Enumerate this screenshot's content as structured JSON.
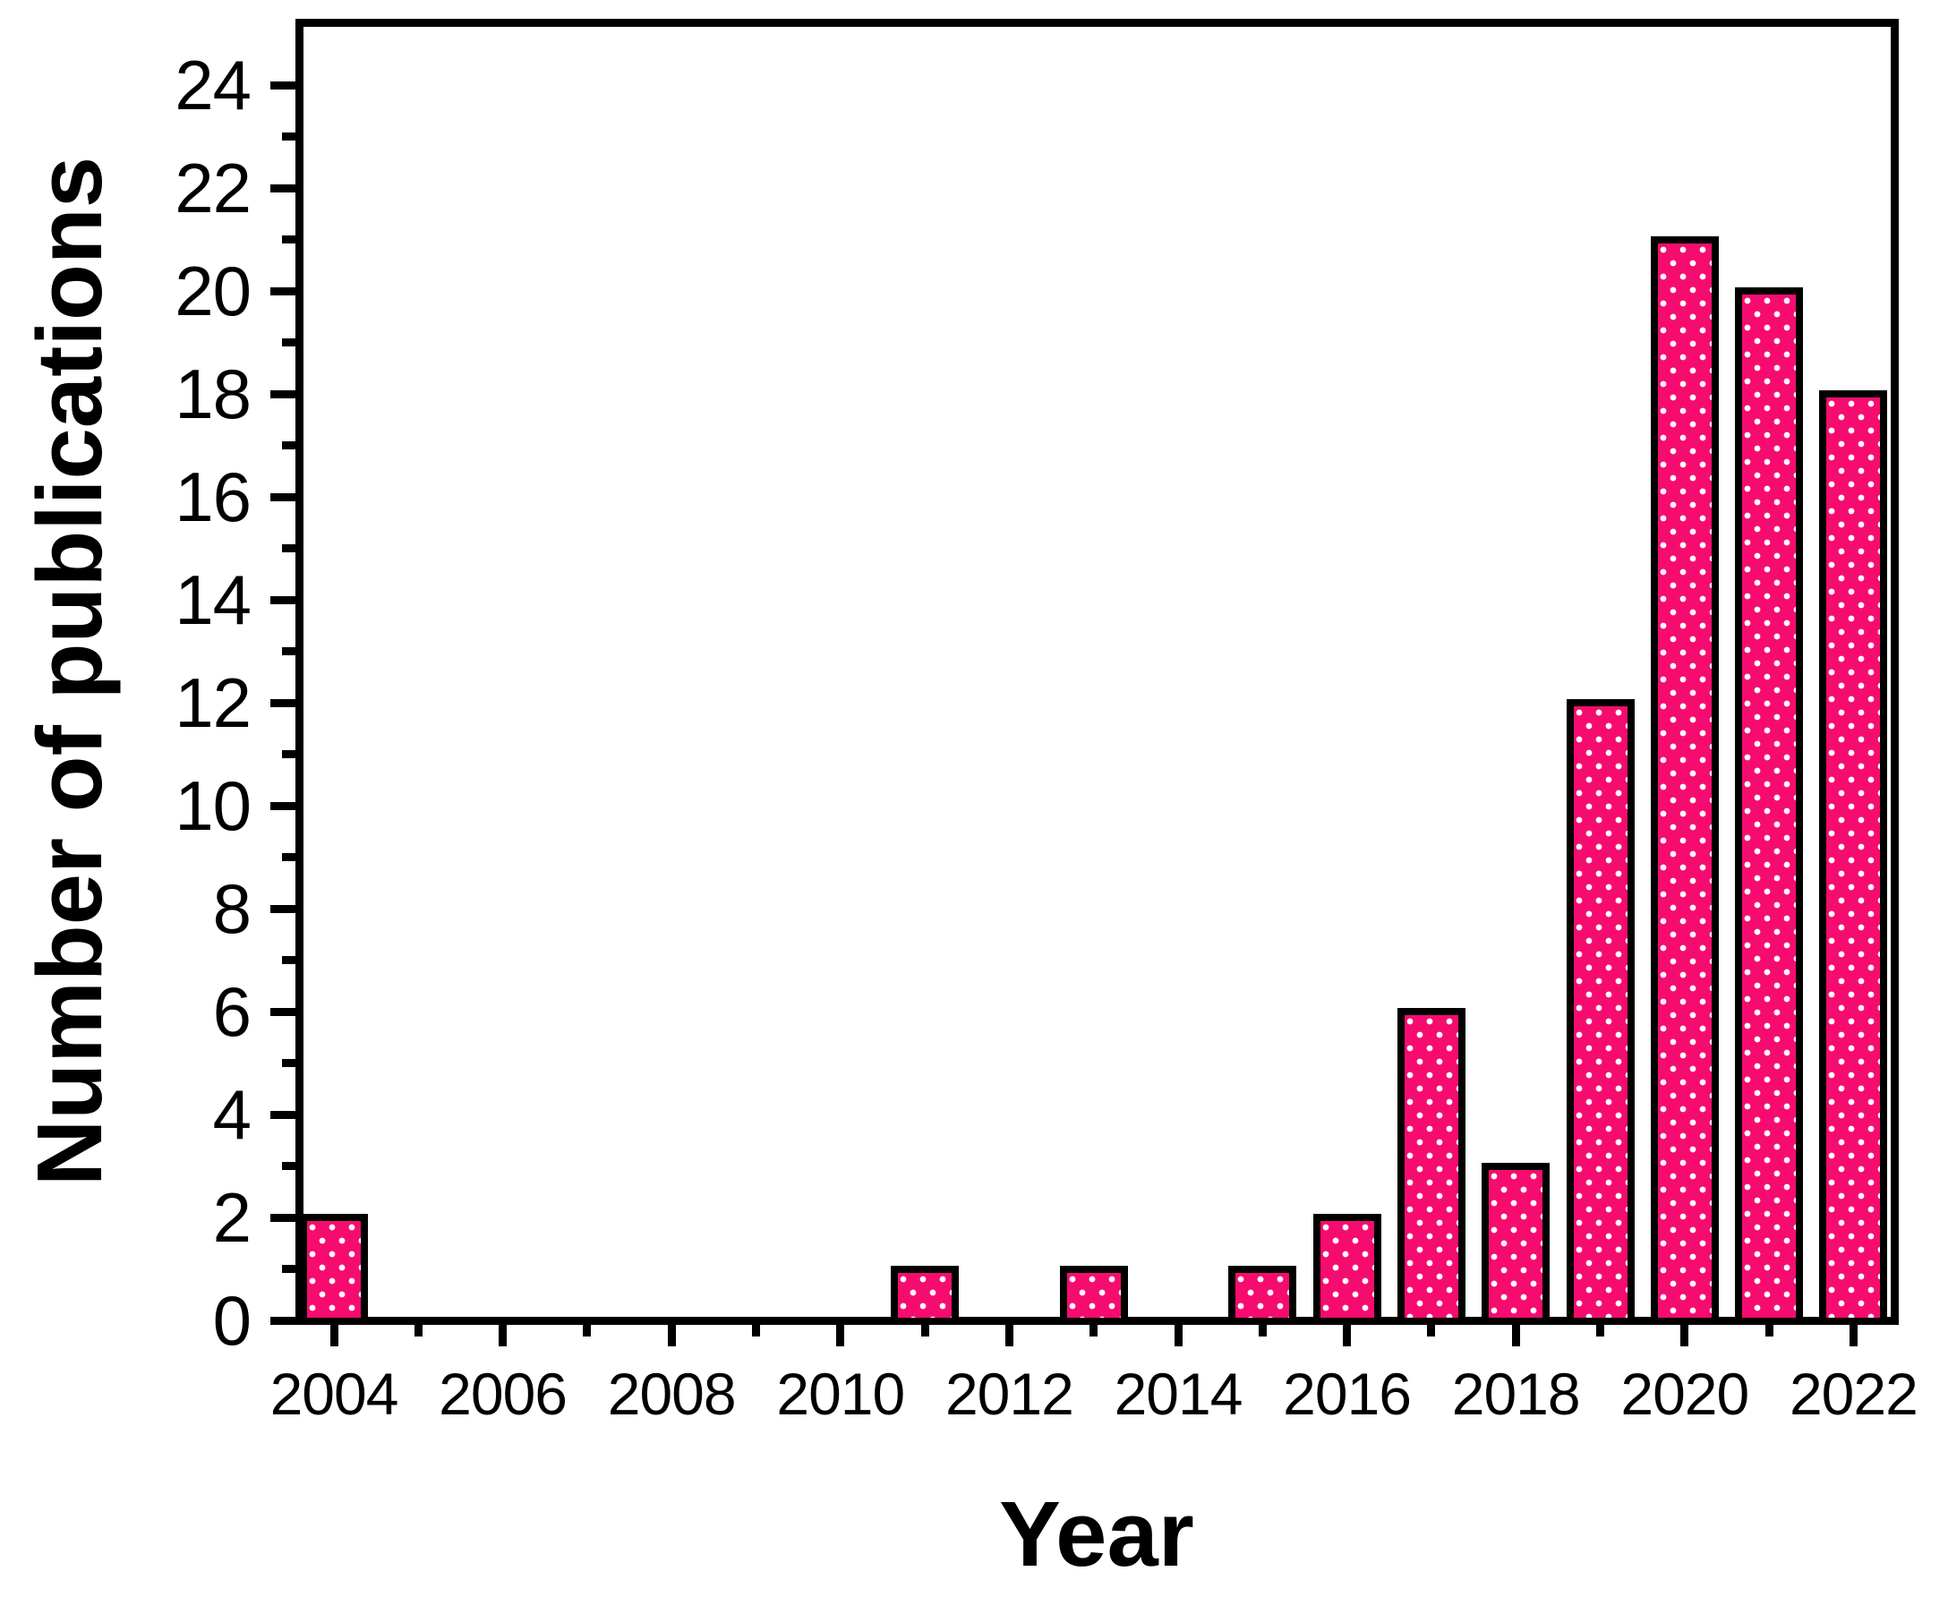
{
  "chart_data": {
    "type": "bar",
    "title": "",
    "xlabel": "Year",
    "ylabel": "Number of publications",
    "categories": [
      2004,
      2005,
      2006,
      2007,
      2008,
      2009,
      2010,
      2011,
      2012,
      2013,
      2014,
      2015,
      2016,
      2017,
      2018,
      2019,
      2020,
      2021,
      2022
    ],
    "values": [
      2,
      0,
      0,
      0,
      0,
      0,
      0,
      1,
      0,
      1,
      0,
      1,
      2,
      6,
      3,
      12,
      21,
      20,
      18
    ],
    "xlim": [
      2003.55,
      2022.5
    ],
    "ylim": [
      0,
      25.2
    ],
    "x_major_ticks": [
      2004,
      2006,
      2008,
      2010,
      2012,
      2014,
      2016,
      2018,
      2020,
      2022
    ],
    "x_minor_ticks": [
      2005,
      2007,
      2009,
      2011,
      2013,
      2015,
      2017,
      2019,
      2021
    ],
    "y_major_ticks": [
      0,
      2,
      4,
      6,
      8,
      10,
      12,
      14,
      16,
      18,
      20,
      22,
      24
    ],
    "y_minor_ticks": [
      1,
      3,
      5,
      7,
      9,
      11,
      13,
      15,
      17,
      19,
      21,
      23
    ],
    "grid": false,
    "legend": "none",
    "bar_color": "#F60C6F",
    "bar_dot_color": "#FFFFFF",
    "bar_border_color": "#000000",
    "axis_color": "#000000",
    "text_color": "#000000",
    "background_color": "#FFFFFF"
  }
}
